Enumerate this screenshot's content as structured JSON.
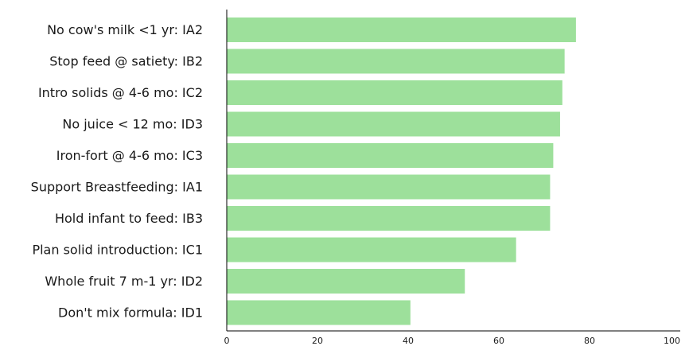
{
  "chart_data": {
    "type": "bar",
    "orientation": "horizontal",
    "title": "",
    "xlabel": "",
    "ylabel": "",
    "categories": [
      "No cow's milk <1 yr: IA2",
      "Stop feed @ satiety: IB2",
      "Intro solids @ 4-6 mo: IC2",
      "No juice < 12 mo: ID3",
      "Iron-fort @ 4-6 mo: IC3",
      "Support Breastfeeding: IA1",
      "Hold infant to feed: IB3",
      "Plan solid introduction: IC1",
      "Whole fruit 7 m-1 yr: ID2",
      "Don't mix formula: ID1"
    ],
    "values": [
      77,
      74.5,
      74,
      73.5,
      72,
      71.3,
      71.3,
      63.8,
      52.5,
      40.5
    ],
    "xlim": [
      0,
      100
    ],
    "xticks": [
      "0",
      "20",
      "40",
      "60",
      "80",
      "100"
    ],
    "grid": false,
    "legend": "none",
    "bar_color": "#9de09b",
    "axis_color": "#000000",
    "text_color": "#1a1a1a"
  }
}
